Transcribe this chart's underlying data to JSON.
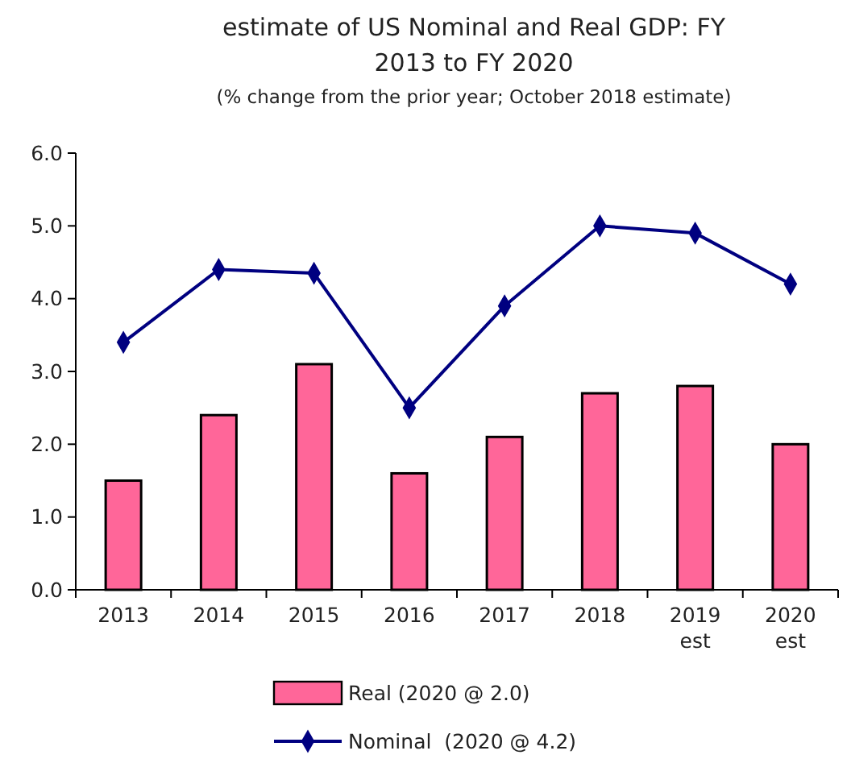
{
  "chart_data": {
    "type": "bar",
    "title": "estimate of US Nominal and Real GDP: FY 2013 to FY 2020",
    "subtitle": "(% change from the prior year; October 2018 estimate)",
    "categories": [
      "2013",
      "2014",
      "2015",
      "2016",
      "2017",
      "2018",
      "2019 est",
      "2020 est"
    ],
    "series": [
      {
        "name": "Real (2020 @ 2.0)",
        "color": "#ff6699",
        "values": [
          1.5,
          2.4,
          3.1,
          1.6,
          2.1,
          2.7,
          2.8,
          2.0
        ]
      },
      {
        "name": "Nominal  (2020 @ 4.2)",
        "type": "line",
        "color": "#000080",
        "marker": "diamond",
        "values": [
          3.4,
          4.4,
          4.35,
          2.5,
          3.9,
          5.0,
          4.9,
          4.2
        ]
      }
    ],
    "ylim": [
      0,
      6
    ],
    "yticks": [
      {
        "value": 0,
        "label": "0.0"
      },
      {
        "value": 1,
        "label": "1.0"
      },
      {
        "value": 2,
        "label": "2.0"
      },
      {
        "value": 3,
        "label": "3.0"
      },
      {
        "value": 4,
        "label": "4.0"
      },
      {
        "value": 5,
        "label": "5.0"
      },
      {
        "value": 6,
        "label": "6.0"
      }
    ],
    "grid": false,
    "legend": "bottom"
  }
}
